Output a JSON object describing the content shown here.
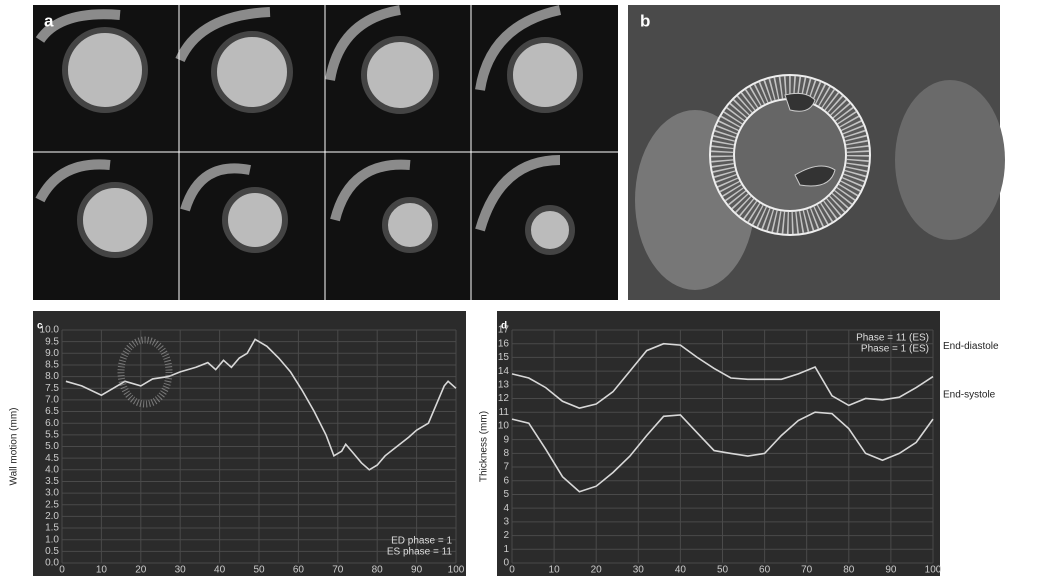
{
  "panel_labels": [
    "a",
    "b"
  ],
  "chart_data": [
    {
      "type": "line",
      "panel_label": "c",
      "ylabel": "Wall motion (mm)",
      "annotations": [
        "ED phase = 1",
        "ES phase = 11"
      ],
      "color": "#d8d8d8",
      "grid": true,
      "x": [
        1,
        5,
        10,
        13,
        16,
        20,
        23,
        27,
        30,
        34,
        37,
        39,
        41,
        43,
        45,
        47,
        49,
        52,
        55,
        58,
        61,
        64,
        67,
        69,
        71,
        72,
        74,
        76,
        78,
        80,
        82,
        85,
        88,
        90,
        93,
        95,
        97,
        98,
        100
      ],
      "values": [
        7.8,
        7.6,
        7.2,
        7.5,
        7.8,
        7.6,
        7.9,
        8.0,
        8.2,
        8.4,
        8.6,
        8.3,
        8.7,
        8.4,
        8.8,
        9.0,
        9.6,
        9.3,
        8.8,
        8.2,
        7.4,
        6.5,
        5.5,
        4.6,
        4.8,
        5.1,
        4.7,
        4.3,
        4.0,
        4.2,
        4.6,
        5.0,
        5.4,
        5.7,
        6.0,
        6.8,
        7.6,
        7.8,
        7.5
      ],
      "xlim": [
        0,
        100
      ],
      "xticks": [
        0,
        10,
        20,
        30,
        40,
        50,
        60,
        70,
        80,
        90,
        100
      ],
      "ylim": [
        0,
        10
      ],
      "yticks": [
        {
          "value": 0,
          "label": "0.0"
        },
        0.5,
        {
          "value": 1,
          "label": "1.0"
        },
        1.5,
        {
          "value": 2,
          "label": "2.0"
        },
        2.5,
        {
          "value": 3,
          "label": "3.0"
        },
        3.5,
        {
          "value": 4,
          "label": "4.0"
        },
        4.5,
        {
          "value": 5,
          "label": "5.0"
        },
        5.5,
        {
          "value": 6,
          "label": "6.0"
        },
        6.5,
        {
          "value": 7,
          "label": "7.0"
        },
        7.5,
        {
          "value": 8,
          "label": "8.0"
        },
        8.5,
        {
          "value": 9,
          "label": "9.0"
        },
        9.5,
        {
          "value": 10,
          "label": "10.0"
        }
      ]
    },
    {
      "type": "line",
      "panel_label": "d",
      "ylabel": "Thickness (mm)",
      "annotations": [
        "Phase = 11 (ES)",
        "Phase = 1 (ES)"
      ],
      "grid": true,
      "legend": "right",
      "x": [
        0,
        4,
        8,
        12,
        16,
        20,
        24,
        28,
        32,
        36,
        40,
        44,
        48,
        52,
        56,
        60,
        64,
        68,
        72,
        76,
        80,
        84,
        88,
        92,
        96,
        100
      ],
      "series": [
        {
          "name": "End-diastole",
          "color": "#d8d8d8",
          "values": [
            13.8,
            13.5,
            12.8,
            11.8,
            11.3,
            11.6,
            12.5,
            14.0,
            15.5,
            16.0,
            15.9,
            15.0,
            14.2,
            13.5,
            13.4,
            13.4,
            13.4,
            13.8,
            14.3,
            12.2,
            11.5,
            12.0,
            11.9,
            12.1,
            12.8,
            13.6
          ]
        },
        {
          "name": "End-systole",
          "color": "#d8d8d8",
          "values": [
            10.5,
            10.2,
            8.3,
            6.3,
            5.2,
            5.6,
            6.6,
            7.8,
            9.3,
            10.7,
            10.8,
            9.5,
            8.2,
            8.0,
            7.8,
            8.0,
            9.3,
            10.4,
            11.0,
            10.9,
            9.8,
            8.0,
            7.5,
            8.0,
            8.8,
            10.5
          ]
        }
      ],
      "xlim": [
        0,
        100
      ],
      "xticks": [
        0,
        10,
        20,
        30,
        40,
        50,
        60,
        70,
        80,
        90,
        100
      ],
      "ylim": [
        0,
        17
      ],
      "yticks": [
        0,
        1,
        2,
        3,
        4,
        5,
        6,
        7,
        8,
        9,
        10,
        11,
        12,
        13,
        14,
        15,
        16,
        17
      ]
    }
  ]
}
